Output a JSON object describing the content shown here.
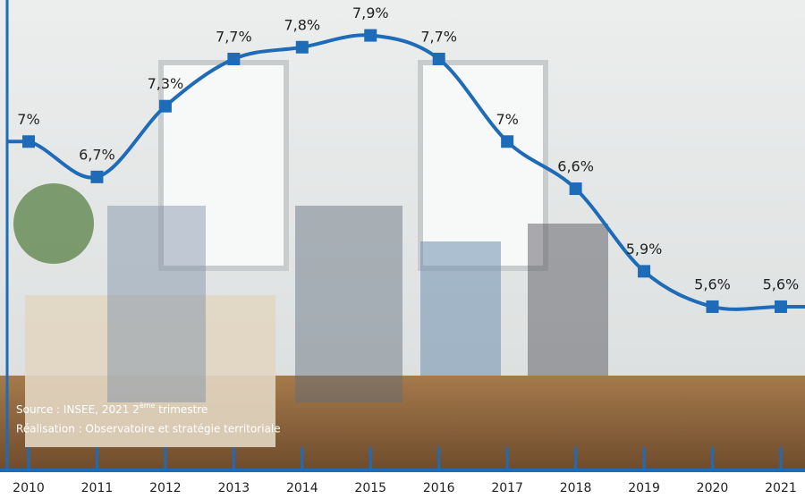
{
  "chart_data": {
    "type": "line",
    "categories": [
      "2010",
      "2011",
      "2012",
      "2013",
      "2014",
      "2015",
      "2016",
      "2017",
      "2018",
      "2019",
      "2020",
      "2021"
    ],
    "series": [
      {
        "color": "#1e6bb8",
        "values": [
          7,
          6.7,
          7.3,
          7.7,
          7.8,
          7.9,
          7.7,
          7,
          6.6,
          5.9,
          5.6,
          5.6
        ],
        "value_labels": [
          "7%",
          "6,7%",
          "7,3%",
          "7,7%",
          "7,8%",
          "7,9%",
          "7,7%",
          "7%",
          "6,6%",
          "5,9%",
          "5,6%",
          "5,6%"
        ]
      }
    ],
    "ylim": [
      4,
      8.2
    ],
    "source": {
      "text": "Source : INSEE, 2021 2",
      "sup": "ème",
      "after": " trimestre"
    },
    "credit": "Réalisation : Observatoire et stratégie territoriale"
  }
}
